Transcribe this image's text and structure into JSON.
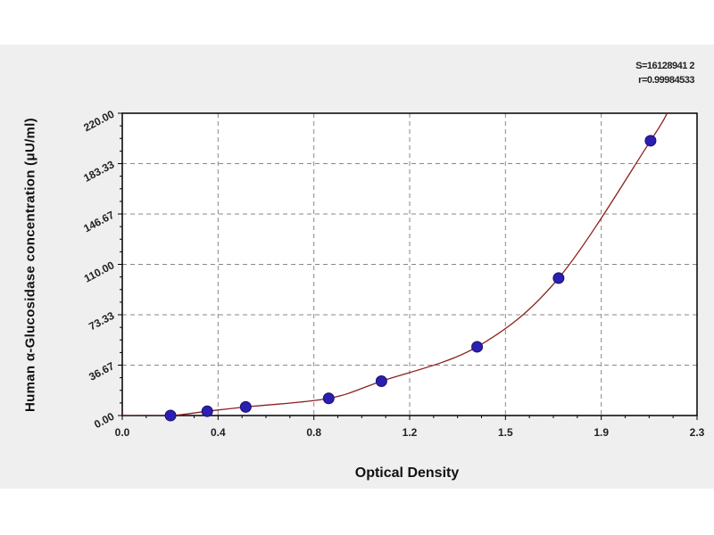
{
  "chart_data": {
    "type": "scatter",
    "title": "",
    "xlabel": "Optical Density",
    "ylabel": "Human α-Glucosidase concentration (μU/ml)",
    "xlim": [
      0,
      2.3
    ],
    "ylim": [
      0,
      220
    ],
    "x_tick_labels": [
      "0.0",
      "0.4",
      "0.8",
      "1.2",
      "1.5",
      "1.9",
      "2.3"
    ],
    "y_tick_labels": [
      "0.00",
      "36.67",
      "73.33",
      "110.00",
      "146.67",
      "183.33",
      "220.00"
    ],
    "grid": true,
    "annotations": [
      "S=16128941 2",
      "r=0.99984533"
    ],
    "series": [
      {
        "type": "scatter",
        "x": [
          0.193,
          0.34,
          0.494,
          0.826,
          1.037,
          1.42,
          1.746,
          2.114
        ],
        "y": [
          0,
          3.12,
          6.25,
          12.5,
          25,
          50,
          100,
          200
        ]
      },
      {
        "type": "fit-curve",
        "x": [
          0.0,
          0.193,
          0.34,
          0.494,
          0.826,
          1.037,
          1.42,
          1.746,
          2.114,
          2.18
        ],
        "y": [
          0,
          0,
          3.12,
          6.25,
          12.5,
          25,
          50,
          100,
          200,
          220
        ]
      }
    ],
    "colors": {
      "points": "#2a1fb0",
      "curve": "#8b2020",
      "grid": "#888888",
      "axis": "#000000"
    }
  },
  "stats": {
    "s": "S=16128941 2",
    "r": "r=0.99984533"
  }
}
